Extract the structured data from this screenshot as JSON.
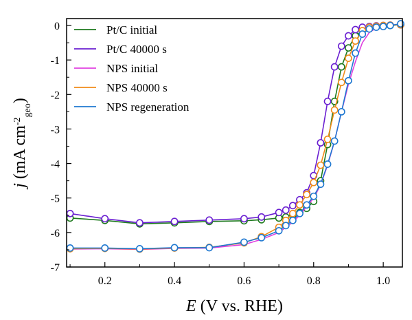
{
  "chart_data": {
    "type": "line",
    "xlabel": {
      "symbol": "E",
      "text": " (V vs. RHE)"
    },
    "ylabel": {
      "symbol": "j",
      "text": " (mA cm",
      "sup": "-2",
      "sub": "geo",
      "close": ")"
    },
    "xlim": [
      0.09,
      1.055
    ],
    "ylim": [
      -7,
      0.2
    ],
    "x_ticks": [
      0.2,
      0.4,
      0.6,
      0.8,
      1.0
    ],
    "x_tick_labels": [
      "0.2",
      "0.4",
      "0.6",
      "0.8",
      "1.0"
    ],
    "y_ticks": [
      0,
      -1,
      -2,
      -3,
      -4,
      -5,
      -6,
      -7
    ],
    "y_tick_labels": [
      "0",
      "-1",
      "-2",
      "-3",
      "-4",
      "-5",
      "-6",
      "-7"
    ],
    "legend_position": "top-left",
    "series": [
      {
        "name": "Pt/C initial",
        "color": "#1e7a1e",
        "x": [
          0.1,
          0.2,
          0.3,
          0.4,
          0.5,
          0.6,
          0.65,
          0.7,
          0.72,
          0.74,
          0.76,
          0.78,
          0.8,
          0.82,
          0.84,
          0.86,
          0.88,
          0.9,
          0.92,
          0.94,
          0.96,
          0.98,
          1.0,
          1.02,
          1.05
        ],
        "y": [
          -5.58,
          -5.65,
          -5.75,
          -5.72,
          -5.68,
          -5.66,
          -5.63,
          -5.58,
          -5.55,
          -5.5,
          -5.42,
          -5.3,
          -5.1,
          -4.5,
          -3.45,
          -2.2,
          -1.2,
          -0.65,
          -0.3,
          -0.15,
          -0.08,
          -0.04,
          -0.02,
          0.0,
          0.02
        ],
        "markers_x": [
          0.1,
          0.2,
          0.3,
          0.4,
          0.5,
          0.6,
          0.65,
          0.7,
          0.72,
          0.74,
          0.76,
          0.78,
          0.8,
          0.82,
          0.84,
          0.86,
          0.88,
          0.9,
          0.92,
          0.94,
          0.96,
          0.98,
          1.0,
          1.02,
          1.05
        ]
      },
      {
        "name": "Pt/C 40000 s",
        "color": "#6a1fd1",
        "x": [
          0.1,
          0.2,
          0.3,
          0.4,
          0.5,
          0.6,
          0.65,
          0.7,
          0.72,
          0.74,
          0.76,
          0.78,
          0.8,
          0.82,
          0.84,
          0.86,
          0.88,
          0.9,
          0.92,
          0.94,
          0.96,
          0.98,
          1.0,
          1.02,
          1.05
        ],
        "y": [
          -5.45,
          -5.6,
          -5.72,
          -5.68,
          -5.64,
          -5.6,
          -5.55,
          -5.42,
          -5.35,
          -5.22,
          -5.05,
          -4.85,
          -4.35,
          -3.4,
          -2.2,
          -1.2,
          -0.6,
          -0.3,
          -0.12,
          -0.05,
          -0.03,
          -0.01,
          0.0,
          0.01,
          0.02
        ],
        "markers_x": [
          0.1,
          0.2,
          0.3,
          0.4,
          0.5,
          0.6,
          0.65,
          0.7,
          0.72,
          0.74,
          0.76,
          0.78,
          0.8,
          0.82,
          0.84,
          0.86,
          0.88,
          0.9,
          0.92,
          0.94,
          0.96,
          0.98,
          1.0,
          1.02,
          1.05
        ]
      },
      {
        "name": "NPS initial",
        "color": "#e040e0",
        "x": [
          0.1,
          0.2,
          0.3,
          0.4,
          0.5,
          0.6,
          0.65,
          0.7,
          0.72,
          0.74,
          0.76,
          0.78,
          0.8,
          0.82,
          0.84,
          0.86,
          0.88,
          0.9,
          0.92,
          0.94,
          0.96,
          0.98,
          1.0,
          1.02,
          1.05
        ],
        "y": [
          -6.48,
          -6.47,
          -6.49,
          -6.46,
          -6.45,
          -6.35,
          -6.2,
          -6.0,
          -5.85,
          -5.7,
          -5.5,
          -5.25,
          -5.0,
          -4.62,
          -4.05,
          -3.35,
          -2.5,
          -1.7,
          -1.05,
          -0.5,
          -0.2,
          -0.08,
          -0.03,
          0.0,
          0.05
        ],
        "markers_x": []
      },
      {
        "name": "NPS 40000 s",
        "color": "#f08c1a",
        "x": [
          0.1,
          0.2,
          0.3,
          0.4,
          0.5,
          0.6,
          0.65,
          0.7,
          0.72,
          0.74,
          0.76,
          0.78,
          0.8,
          0.82,
          0.84,
          0.86,
          0.88,
          0.9,
          0.92,
          0.94,
          0.96,
          0.98,
          1.0,
          1.02,
          1.05
        ],
        "y": [
          -6.47,
          -6.46,
          -6.48,
          -6.45,
          -6.43,
          -6.3,
          -6.12,
          -5.85,
          -5.65,
          -5.45,
          -5.2,
          -4.9,
          -4.55,
          -4.05,
          -3.3,
          -2.45,
          -1.65,
          -0.95,
          -0.45,
          -0.15,
          -0.05,
          -0.02,
          0.0,
          0.01,
          0.02
        ],
        "markers_x": [
          0.1,
          0.2,
          0.3,
          0.4,
          0.5,
          0.6,
          0.65,
          0.7,
          0.72,
          0.74,
          0.76,
          0.78,
          0.8,
          0.82,
          0.84,
          0.86,
          0.88,
          0.9,
          0.92,
          0.94,
          0.96,
          0.98,
          1.0,
          1.02,
          1.05
        ]
      },
      {
        "name": "NPS regeneration",
        "color": "#1f78d1",
        "x": [
          0.1,
          0.2,
          0.3,
          0.4,
          0.5,
          0.6,
          0.65,
          0.7,
          0.72,
          0.74,
          0.76,
          0.78,
          0.8,
          0.82,
          0.84,
          0.86,
          0.88,
          0.9,
          0.92,
          0.94,
          0.96,
          0.98,
          1.0,
          1.02,
          1.05
        ],
        "y": [
          -6.45,
          -6.45,
          -6.47,
          -6.44,
          -6.44,
          -6.28,
          -6.15,
          -5.95,
          -5.8,
          -5.65,
          -5.45,
          -5.2,
          -4.95,
          -4.6,
          -4.02,
          -3.35,
          -2.5,
          -1.6,
          -0.8,
          -0.25,
          -0.1,
          -0.05,
          -0.03,
          0.0,
          0.05
        ],
        "markers_x": [
          0.1,
          0.2,
          0.3,
          0.4,
          0.5,
          0.6,
          0.65,
          0.7,
          0.72,
          0.74,
          0.76,
          0.78,
          0.8,
          0.82,
          0.84,
          0.86,
          0.88,
          0.9,
          0.92,
          0.94,
          0.96,
          0.98,
          1.0,
          1.02,
          1.05
        ]
      }
    ]
  }
}
